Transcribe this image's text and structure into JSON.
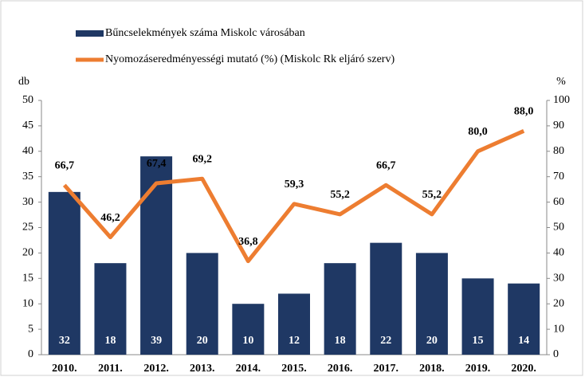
{
  "chart_data": {
    "type": "bar",
    "categories": [
      "2010.",
      "2011.",
      "2012.",
      "2013.",
      "2014.",
      "2015.",
      "2016.",
      "2017.",
      "2018.",
      "2019.",
      "2020."
    ],
    "series": [
      {
        "name": "Bűncselekmények száma Miskolc városában",
        "type": "bar",
        "color": "#1f3864",
        "values": [
          32,
          18,
          39,
          20,
          10,
          12,
          18,
          22,
          20,
          15,
          14
        ]
      },
      {
        "name": "Nyomozáseredményességi mutató (%) (Miskolc Rk eljáró szerv)",
        "type": "line",
        "color": "#ed7d31",
        "axis": "y2",
        "values": [
          66.7,
          46.2,
          67.4,
          69.2,
          36.8,
          59.3,
          55.2,
          66.7,
          55.2,
          80.0,
          88.0
        ],
        "value_labels": [
          "66,7",
          "46,2",
          "67,4",
          "69,2",
          "36,8",
          "59,3",
          "55,2",
          "66,7",
          "55,2",
          "80,0",
          "88,0"
        ]
      }
    ],
    "ylabel": "db",
    "y2label": "%",
    "ylim": [
      0,
      50
    ],
    "yticks": [
      0,
      5,
      10,
      15,
      20,
      25,
      30,
      35,
      40,
      45,
      50
    ],
    "y2lim": [
      0,
      100
    ],
    "y2ticks": [
      0,
      10,
      20,
      30,
      40,
      50,
      60,
      70,
      80,
      90,
      100
    ]
  }
}
